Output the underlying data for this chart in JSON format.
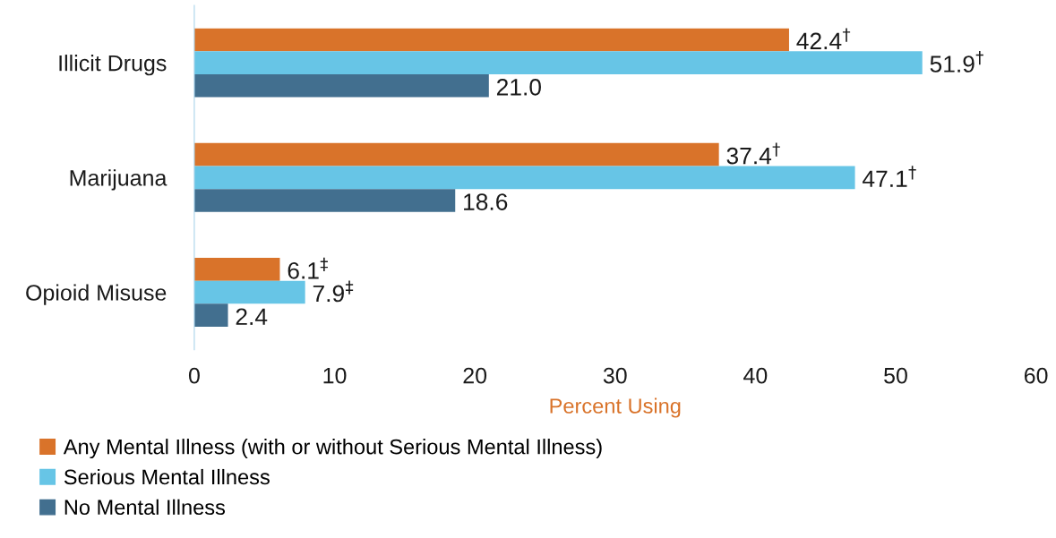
{
  "chart_data": {
    "type": "bar",
    "orientation": "horizontal",
    "xlabel": "Percent Using",
    "categories": [
      "Illicit Drugs",
      "Marijuana",
      "Opioid Misuse"
    ],
    "series": [
      {
        "name": "Any Mental Illness (with or without Serious Mental Illness)",
        "color": "#d9732a",
        "values": [
          42.4,
          37.4,
          6.1
        ],
        "value_labels": [
          "42.4$^{†}$",
          "37.4$^{†}$",
          "6.1$^{‡}$"
        ]
      },
      {
        "name": "Serious Mental Illness",
        "color": "#67c5e6",
        "values": [
          51.9,
          47.1,
          7.9
        ],
        "value_labels": [
          "51.9$^{†}$",
          "47.1$^{†}$",
          "7.9$^{‡}$"
        ]
      },
      {
        "name": "No Mental Illness",
        "color": "#426f8f",
        "values": [
          21.0,
          18.6,
          2.4
        ],
        "value_labels": [
          "21.0",
          "18.6",
          "2.4"
        ]
      }
    ],
    "xlim": [
      0,
      60
    ],
    "xticks": [
      0,
      10,
      20,
      30,
      40,
      50,
      60
    ],
    "grid": false,
    "legend": "bottom left"
  }
}
